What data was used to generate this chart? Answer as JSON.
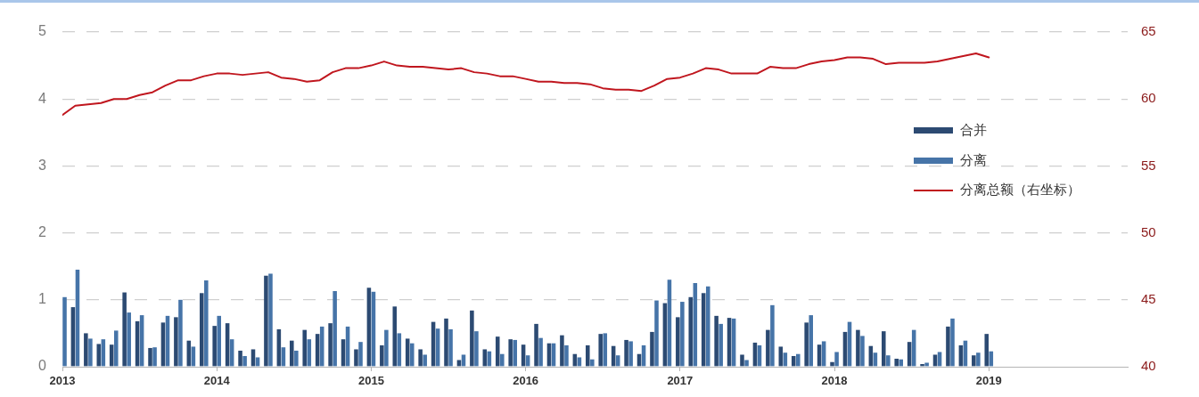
{
  "chart_data": {
    "type": "bar",
    "x": [
      "2013-01",
      "2013-02",
      "2013-03",
      "2013-04",
      "2013-05",
      "2013-06",
      "2013-07",
      "2013-08",
      "2013-09",
      "2013-10",
      "2013-11",
      "2013-12",
      "2014-01",
      "2014-02",
      "2014-03",
      "2014-04",
      "2014-05",
      "2014-06",
      "2014-07",
      "2014-08",
      "2014-09",
      "2014-10",
      "2014-11",
      "2014-12",
      "2015-01",
      "2015-02",
      "2015-03",
      "2015-04",
      "2015-05",
      "2015-06",
      "2015-07",
      "2015-08",
      "2015-09",
      "2015-10",
      "2015-11",
      "2015-12",
      "2016-01",
      "2016-02",
      "2016-03",
      "2016-04",
      "2016-05",
      "2016-06",
      "2016-07",
      "2016-08",
      "2016-09",
      "2016-10",
      "2016-11",
      "2016-12",
      "2017-01",
      "2017-02",
      "2017-03",
      "2017-04",
      "2017-05",
      "2017-06",
      "2017-07",
      "2017-08",
      "2017-09",
      "2017-10",
      "2017-11",
      "2017-12",
      "2018-01",
      "2018-02",
      "2018-03",
      "2018-04",
      "2018-05",
      "2018-06",
      "2018-07",
      "2018-08",
      "2018-09",
      "2018-10",
      "2018-11",
      "2018-12",
      "2019-01"
    ],
    "series": [
      {
        "name": "合并",
        "color": "#2c4a72",
        "values": [
          null,
          0.89,
          0.5,
          0.34,
          0.33,
          1.11,
          0.68,
          0.28,
          0.66,
          0.74,
          0.39,
          1.1,
          0.61,
          0.65,
          0.24,
          0.26,
          1.36,
          0.56,
          0.39,
          0.55,
          0.49,
          0.65,
          0.41,
          0.26,
          1.18,
          0.32,
          0.9,
          0.42,
          0.26,
          0.67,
          0.72,
          0.1,
          0.84,
          0.26,
          0.45,
          0.41,
          0.33,
          0.64,
          0.35,
          0.47,
          0.19,
          0.32,
          0.49,
          0.31,
          0.4,
          0.19,
          0.52,
          0.95,
          0.74,
          1.04,
          1.1,
          0.76,
          0.73,
          0.18,
          0.36,
          0.55,
          0.3,
          0.16,
          0.66,
          0.33,
          0.07,
          0.52,
          0.55,
          0.31,
          0.53,
          0.12,
          0.37,
          0.04,
          0.18,
          0.6,
          0.32,
          0.17,
          0.49
        ]
      },
      {
        "name": "分离",
        "color": "#4674a8",
        "values": [
          1.04,
          1.45,
          0.42,
          0.41,
          0.54,
          0.81,
          0.77,
          0.29,
          0.76,
          1.0,
          0.3,
          1.29,
          0.76,
          0.41,
          0.16,
          0.14,
          1.39,
          0.29,
          0.24,
          0.41,
          0.6,
          1.13,
          0.6,
          0.37,
          1.12,
          0.55,
          0.5,
          0.35,
          0.18,
          0.57,
          0.56,
          0.18,
          0.53,
          0.23,
          0.19,
          0.4,
          0.17,
          0.43,
          0.35,
          0.32,
          0.14,
          0.11,
          0.5,
          0.17,
          0.38,
          0.32,
          0.99,
          1.3,
          0.97,
          1.25,
          1.2,
          0.64,
          0.72,
          0.1,
          0.32,
          0.92,
          0.21,
          0.19,
          0.77,
          0.38,
          0.22,
          0.67,
          0.46,
          0.21,
          0.17,
          0.11,
          0.55,
          0.06,
          0.22,
          0.72,
          0.39,
          0.21,
          0.23
        ]
      },
      {
        "name": "分离总额（右坐标）",
        "type": "line",
        "axis": "y2",
        "color": "#c0161e",
        "marker": "none",
        "values": [
          58.8,
          59.5,
          59.6,
          59.7,
          60.0,
          60.0,
          60.3,
          60.5,
          61.0,
          61.4,
          61.4,
          61.7,
          61.9,
          61.9,
          61.8,
          61.9,
          62.0,
          61.6,
          61.5,
          61.3,
          61.4,
          62.0,
          62.3,
          62.3,
          62.5,
          62.8,
          62.5,
          62.4,
          62.4,
          62.3,
          62.2,
          62.3,
          62.0,
          61.9,
          61.7,
          61.7,
          61.5,
          61.3,
          61.3,
          61.2,
          61.2,
          61.1,
          60.8,
          60.7,
          60.7,
          60.6,
          61.0,
          61.5,
          61.6,
          61.9,
          62.3,
          62.2,
          61.9,
          61.9,
          61.9,
          62.4,
          62.3,
          62.3,
          62.6,
          62.8,
          62.9,
          63.1,
          63.1,
          63.0,
          62.6,
          62.7,
          62.7,
          62.7,
          62.8,
          63.0,
          63.2,
          63.4,
          63.1
        ]
      }
    ],
    "xlim": [
      "2013-01",
      "2019-11-25"
    ],
    "xticks": [
      "2013",
      "2014",
      "2015",
      "2016",
      "2017",
      "2018",
      "2019"
    ],
    "ylim": [
      0,
      5
    ],
    "yticks": [
      0,
      1,
      2,
      3,
      4,
      5
    ],
    "y2lim": [
      40,
      65
    ],
    "y2ticks": [
      40,
      45,
      50,
      55,
      60,
      65
    ],
    "grid": "y",
    "legend": "right"
  }
}
